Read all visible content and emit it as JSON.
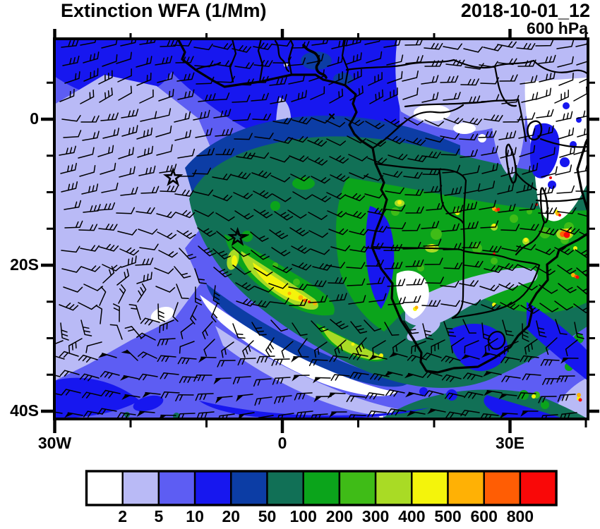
{
  "header": {
    "title": "Extinction WFA (1/Mm)",
    "datetime": "2018-10-01_12",
    "level": "600 hPa"
  },
  "axes": {
    "x": {
      "major_ticks": [
        {
          "label": "30W",
          "lon": -30
        },
        {
          "label": "0",
          "lon": 0
        },
        {
          "label": "30E",
          "lon": 30
        }
      ],
      "minor_lons": [
        -20,
        -10,
        10,
        20,
        40
      ]
    },
    "y": {
      "major_ticks": [
        {
          "label": "0",
          "lat": 0
        },
        {
          "label": "20S",
          "lat": -20
        },
        {
          "label": "40S",
          "lat": -40
        }
      ],
      "minor_lats": [
        5,
        -5,
        -10,
        -15,
        -25,
        -30,
        -35
      ]
    }
  },
  "colorbar": {
    "labels": [
      "2",
      "5",
      "10",
      "20",
      "50",
      "100",
      "200",
      "300",
      "400",
      "500",
      "600",
      "800"
    ],
    "colors": [
      "#FFFFFF",
      "#B9BAF6",
      "#5D5DF3",
      "#1717EF",
      "#0C3DA5",
      "#117056",
      "#0BA41B",
      "#3FBC17",
      "#A9DB25",
      "#F4F40B",
      "#FFB105",
      "#FF5D04",
      "#F90808"
    ]
  },
  "chart_data": {
    "type": "heatmap",
    "title": "Extinction WFA (1/Mm)",
    "variable": "Aerosol extinction (WFA)",
    "units": "1/Mm",
    "valid_time": "2018-10-01_12",
    "pressure_level_hPa": 600,
    "lon_range": [
      -30.7,
      40.3
    ],
    "lat_range": [
      -41,
      11
    ],
    "x_tick_labels": [
      "30W",
      "0",
      "30E"
    ],
    "y_tick_labels": [
      "0",
      "20S",
      "40S"
    ],
    "color_scale_levels": [
      2,
      5,
      10,
      20,
      50,
      100,
      200,
      300,
      400,
      500,
      600,
      800
    ],
    "color_scale_colors": [
      "#FFFFFF",
      "#B9BAF6",
      "#5D5DF3",
      "#1717EF",
      "#0C3DA5",
      "#117056",
      "#0BA41B",
      "#3FBC17",
      "#A9DB25",
      "#F4F40B",
      "#FF B105",
      "#FF5D04",
      "#F90808"
    ],
    "overlays": [
      "wind barbs",
      "coastlines",
      "country borders",
      "lakes"
    ],
    "markers": [
      {
        "type": "star",
        "lon": -14.4,
        "lat": -8.0
      },
      {
        "type": "star",
        "lon": -5.9,
        "lat": -16.2
      }
    ],
    "features": [
      {
        "region": "Smoke plume over SE Atlantic off Angola/Namibia coast",
        "values": "100-300 with 400-800 streak along coast"
      },
      {
        "region": "Central/southern Africa (Congo basin, Zambia, Tanzania)",
        "values": "100-300 with isolated 500-800 hotspots"
      },
      {
        "region": "Broad plume envelope over tropical SE Atlantic",
        "values": "50-100"
      },
      {
        "region": "NW subtropical Atlantic",
        "values": "2-5"
      },
      {
        "region": "East Africa (Kenya / N Tanzania)",
        "values": "below 2"
      },
      {
        "region": "Southern Ocean ambient",
        "values": "5-10"
      }
    ]
  }
}
